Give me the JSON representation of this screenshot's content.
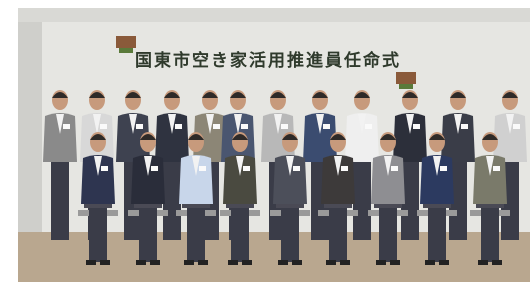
{
  "photo": {
    "banner": "国東市空き家活用推進員任命式"
  }
}
